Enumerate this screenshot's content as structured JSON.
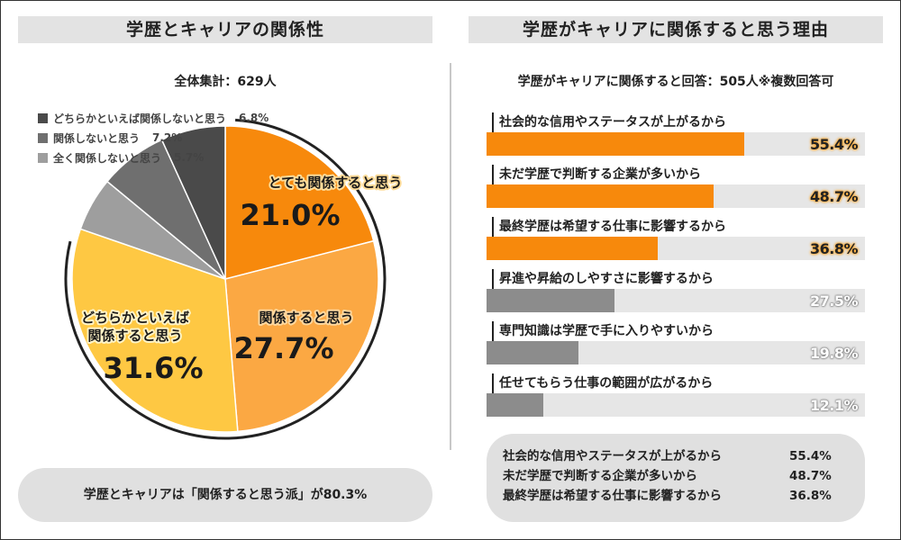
{
  "left_panel": {
    "title": "学歴とキャリアの関係性",
    "total": "全体集計：629人",
    "summary": "学歴とキャリアは「関係すると思う派」が80.3%"
  },
  "right_panel": {
    "title": "学歴がキャリアに関係すると思う理由",
    "subtitle": "学歴がキャリアに関係すると回答：505人※複数回答可",
    "summary": [
      {
        "label": "社会的な信用やステータスが上がるから",
        "value": "55.4%"
      },
      {
        "label": "未だ学歴で判断する企業が多いから",
        "value": "48.7%"
      },
      {
        "label": "最終学歴は希望する仕事に影響するから",
        "value": "36.8%"
      }
    ]
  },
  "chart_data": [
    {
      "type": "pie",
      "title": "学歴とキャリアの関係性",
      "slices": [
        {
          "label": "とても関係すると思う",
          "value": 21.0,
          "display": "21.0%",
          "color": "#f7890c"
        },
        {
          "label": "関係すると思う",
          "value": 27.7,
          "display": "27.7%",
          "color": "#fba843"
        },
        {
          "label": "どちらかといえば関係すると思う",
          "value": 31.6,
          "display": "31.6%",
          "color": "#fec843"
        },
        {
          "label": "全く関係しないと思う",
          "value": 5.7,
          "display": "5.7%",
          "color": "#9e9e9e"
        },
        {
          "label": "関係しないと思う",
          "value": 7.2,
          "display": "7.2%",
          "color": "#6f6f6f"
        },
        {
          "label": "どちらかといえば関係しないと思う",
          "value": 6.8,
          "display": "6.8%",
          "color": "#4a4a4a"
        }
      ],
      "legend": [
        {
          "label": "どちらかといえば関係しないと思う",
          "display": "6.8%",
          "color": "#4a4a4a"
        },
        {
          "label": "関係しないと思う",
          "display": "7.2%",
          "color": "#6f6f6f"
        },
        {
          "label": "全く関係しないと思う",
          "display": "5.7%",
          "color": "#9e9e9e"
        }
      ],
      "legend_position": "top-left"
    },
    {
      "type": "bar",
      "title": "学歴がキャリアに関係すると思う理由",
      "orientation": "horizontal",
      "xlim": [
        0,
        100
      ],
      "categories": [
        "社会的な信用やステータスが上がるから",
        "未だ学歴で判断する企業が多いから",
        "最終学歴は希望する仕事に影響するから",
        "昇進や昇給のしやすさに影響するから",
        "専門知識は学歴で手に入りやすいから",
        "任せてもらう仕事の範囲が広がるから"
      ],
      "values": [
        55.4,
        48.7,
        36.8,
        27.5,
        19.8,
        12.1
      ],
      "display": [
        "55.4%",
        "48.7%",
        "36.8%",
        "27.5%",
        "19.8%",
        "12.1%"
      ],
      "colors": [
        "#f7890c",
        "#f7890c",
        "#f7890c",
        "#8c8c8c",
        "#8c8c8c",
        "#8c8c8c"
      ]
    }
  ]
}
